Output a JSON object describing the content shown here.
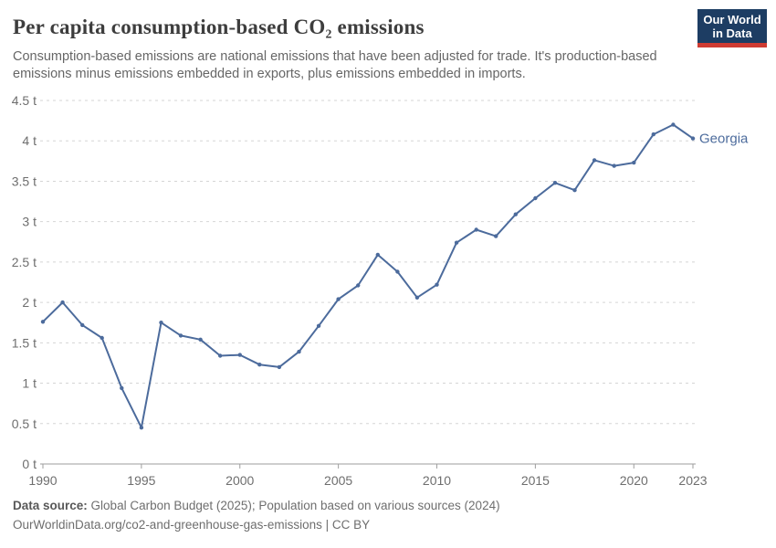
{
  "header": {
    "title": "Per capita consumption-based CO₂ emissions",
    "subtitle": "Consumption-based emissions are national emissions that have been adjusted for trade. It's production-based emissions minus emissions embedded in exports, plus emissions embedded in imports.",
    "logo": {
      "line1": "Our World",
      "line2": "in Data"
    }
  },
  "chart_data": {
    "type": "line",
    "title": "Per capita consumption-based CO₂ emissions",
    "entity": "Georgia",
    "unit": "t",
    "xlim": [
      1990,
      2023
    ],
    "ylim": [
      0,
      4.5
    ],
    "grid": "horizontal-dashed",
    "legend": "end-of-line-label",
    "x_ticks": [
      1990,
      1995,
      2000,
      2005,
      2010,
      2015,
      2020,
      2023
    ],
    "y_ticks": [
      {
        "value": 0,
        "label": "0 t"
      },
      {
        "value": 0.5,
        "label": "0.5 t"
      },
      {
        "value": 1,
        "label": "1 t"
      },
      {
        "value": 1.5,
        "label": "1.5 t"
      },
      {
        "value": 2,
        "label": "2 t"
      },
      {
        "value": 2.5,
        "label": "2.5 t"
      },
      {
        "value": 3,
        "label": "3 t"
      },
      {
        "value": 3.5,
        "label": "3.5 t"
      },
      {
        "value": 4,
        "label": "4 t"
      },
      {
        "value": 4.5,
        "label": "4.5 t"
      }
    ],
    "series": [
      {
        "name": "Georgia",
        "color": "#4c6b9c",
        "x": [
          1990,
          1991,
          1992,
          1993,
          1994,
          1995,
          1996,
          1997,
          1998,
          1999,
          2000,
          2001,
          2002,
          2003,
          2004,
          2005,
          2006,
          2007,
          2008,
          2009,
          2010,
          2011,
          2012,
          2013,
          2014,
          2015,
          2016,
          2017,
          2018,
          2019,
          2020,
          2021,
          2022,
          2023
        ],
        "values": [
          1.76,
          2.0,
          1.72,
          1.56,
          0.94,
          0.45,
          1.75,
          1.59,
          1.54,
          1.34,
          1.35,
          1.23,
          1.2,
          1.39,
          1.71,
          2.04,
          2.21,
          2.59,
          2.38,
          2.06,
          2.22,
          2.74,
          2.9,
          2.82,
          3.09,
          3.29,
          3.48,
          3.39,
          3.76,
          3.69,
          3.73,
          4.08,
          4.2,
          4.03
        ]
      }
    ],
    "colors": {
      "line": "#4c6b9c",
      "grid": "#d5d5d5",
      "axis": "#9e9e9e",
      "tick_text": "#6e6e6e"
    }
  },
  "footer": {
    "source_label": "Data source:",
    "source_text": "Global Carbon Budget (2025); Population based on various sources (2024)",
    "note": "OurWorldinData.org/co2-and-greenhouse-gas-emissions | CC BY"
  }
}
